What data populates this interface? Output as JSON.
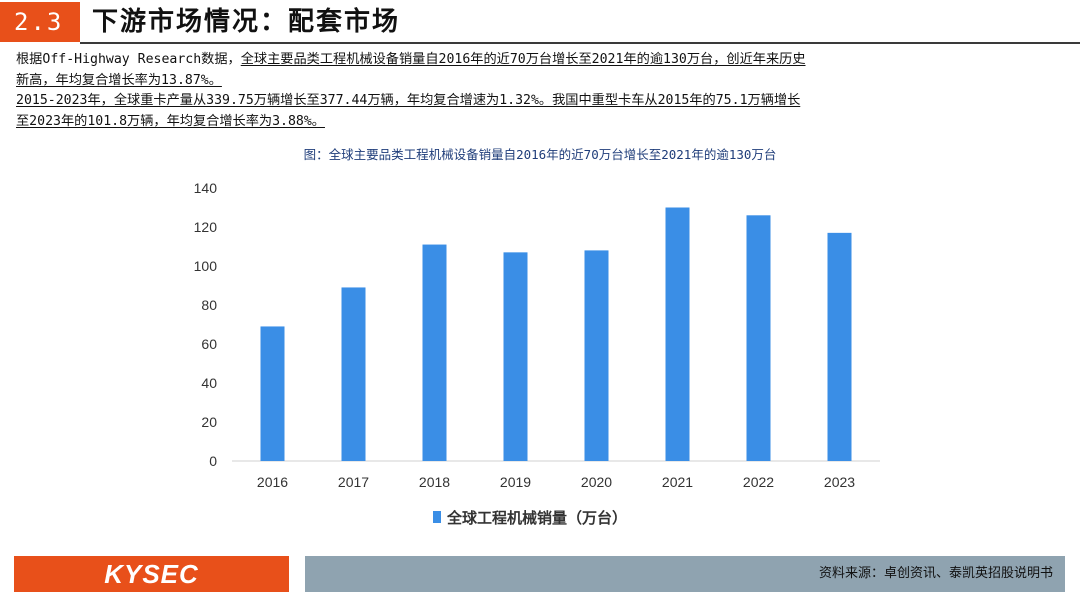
{
  "header": {
    "section_number": "2.3",
    "title": "下游市场情况：配套市场"
  },
  "body": {
    "p1_prefix": "根据Off-Highway Research数据，",
    "p1_underlined_a": "全球主要品类工程机械设备销量自2016年的近70万台增长至2021年的逾130万台，创近年来历史",
    "p1_underlined_b": "新高，年均复合增长率为13.87%。",
    "p2_line1": "2015-2023年，全球重卡产量从339.75万辆增长至377.44万辆，年均复合增速为1.32%。我国中重型卡车从2015年的75.1万辆增长",
    "p2_line2": "至2023年的101.8万辆，年均复合增长率为3.88%。"
  },
  "figure": {
    "caption": "图：全球主要品类工程机械设备销量自2016年的近70万台增长至2021年的逾130万台"
  },
  "chart_data": {
    "type": "bar",
    "title": "",
    "categories": [
      "2016",
      "2017",
      "2018",
      "2019",
      "2020",
      "2021",
      "2022",
      "2023"
    ],
    "series": [
      {
        "name": "全球工程机械销量（万台）",
        "values": [
          69,
          89,
          111,
          107,
          108,
          130,
          126,
          117
        ]
      }
    ],
    "yticks": [
      0,
      20,
      40,
      60,
      80,
      100,
      120,
      140
    ],
    "ylim": [
      0,
      140
    ],
    "xlabel": "",
    "ylabel": "",
    "grid": false,
    "legend_position": "bottom",
    "bar_color": "#3a8ee6"
  },
  "footer": {
    "logo": "KYSEC",
    "source": "资料来源：卓创资讯、泰凯英招股说明书"
  }
}
